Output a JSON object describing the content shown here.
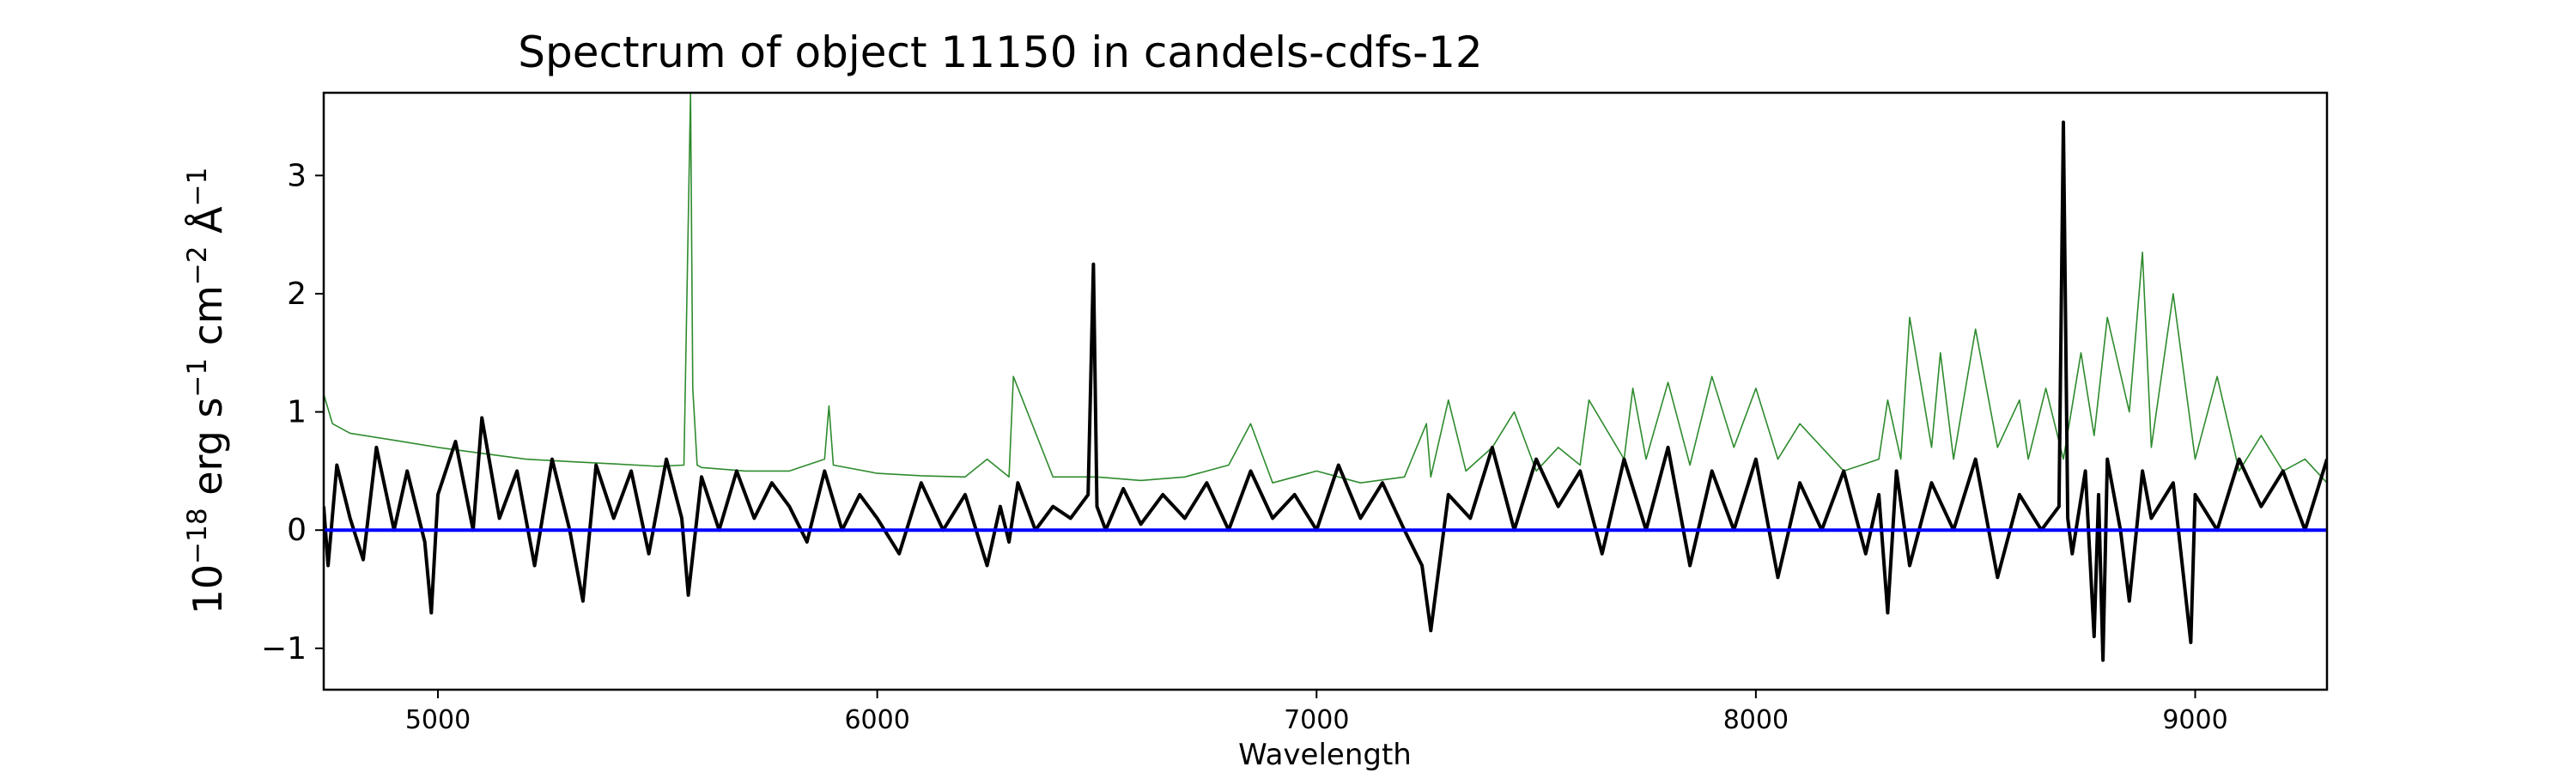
{
  "chart_data": {
    "type": "line",
    "title": "Spectrum of object 11150 in candels-cdfs-12",
    "xlabel": "Wavelength",
    "ylabel": "10",
    "ylabel_exp": "−18",
    "ylabel_units": " erg s",
    "ylabel_s_exp": "−1",
    "ylabel_cm": " cm",
    "ylabel_cm_exp": "−2",
    "ylabel_ang": " Å",
    "ylabel_ang_exp": "−1",
    "xlim": [
      4740,
      9300
    ],
    "ylim": [
      -1.35,
      3.7
    ],
    "xticks": [
      5000,
      6000,
      7000,
      8000,
      9000
    ],
    "xtick_labels": [
      "5000",
      "6000",
      "7000",
      "8000",
      "9000"
    ],
    "yticks": [
      -1,
      0,
      1,
      2,
      3
    ],
    "ytick_labels": [
      "−1",
      "0",
      "1",
      "2",
      "3"
    ],
    "grid": false,
    "series": [
      {
        "role": "model",
        "color": "#2e8b2e",
        "x": [
          4740,
          4760,
          4800,
          4900,
          5000,
          5100,
          5200,
          5300,
          5400,
          5500,
          5560,
          5575,
          5580,
          5590,
          5600,
          5700,
          5800,
          5880,
          5890,
          5900,
          6000,
          6100,
          6200,
          6250,
          6300,
          6310,
          6400,
          6500,
          6600,
          6700,
          6800,
          6850,
          6900,
          7000,
          7100,
          7200,
          7250,
          7260,
          7300,
          7340,
          7400,
          7450,
          7500,
          7550,
          7600,
          7620,
          7700,
          7720,
          7750,
          7800,
          7850,
          7900,
          7950,
          8000,
          8050,
          8100,
          8200,
          8280,
          8300,
          8330,
          8350,
          8400,
          8420,
          8450,
          8500,
          8550,
          8600,
          8620,
          8660,
          8700,
          8740,
          8770,
          8800,
          8850,
          8880,
          8900,
          8950,
          9000,
          9050,
          9100,
          9150,
          9200,
          9250,
          9300
        ],
        "y": [
          1.15,
          0.9,
          0.82,
          0.76,
          0.7,
          0.65,
          0.6,
          0.58,
          0.56,
          0.54,
          0.55,
          3.7,
          1.2,
          0.55,
          0.53,
          0.5,
          0.5,
          0.6,
          1.05,
          0.55,
          0.48,
          0.46,
          0.45,
          0.6,
          0.45,
          1.3,
          0.45,
          0.45,
          0.42,
          0.45,
          0.55,
          0.9,
          0.4,
          0.5,
          0.4,
          0.45,
          0.9,
          0.45,
          1.1,
          0.5,
          0.7,
          1.0,
          0.5,
          0.7,
          0.55,
          1.1,
          0.6,
          1.2,
          0.6,
          1.25,
          0.55,
          1.3,
          0.7,
          1.2,
          0.6,
          0.9,
          0.5,
          0.6,
          1.1,
          0.6,
          1.8,
          0.7,
          1.5,
          0.6,
          1.7,
          0.7,
          1.1,
          0.6,
          1.2,
          0.6,
          1.5,
          0.8,
          1.8,
          1.0,
          2.35,
          0.7,
          2.0,
          0.6,
          1.3,
          0.5,
          0.8,
          0.5,
          0.6,
          0.4
        ]
      },
      {
        "role": "observed",
        "color": "#000000",
        "x": [
          4740,
          4750,
          4770,
          4800,
          4830,
          4860,
          4900,
          4930,
          4970,
          4985,
          5000,
          5040,
          5080,
          5100,
          5140,
          5180,
          5220,
          5260,
          5300,
          5330,
          5360,
          5400,
          5440,
          5480,
          5520,
          5555,
          5570,
          5600,
          5640,
          5680,
          5720,
          5760,
          5800,
          5840,
          5880,
          5920,
          5960,
          6000,
          6050,
          6100,
          6150,
          6200,
          6250,
          6280,
          6300,
          6320,
          6360,
          6400,
          6440,
          6480,
          6492,
          6500,
          6520,
          6560,
          6600,
          6650,
          6700,
          6750,
          6800,
          6850,
          6900,
          6950,
          7000,
          7050,
          7100,
          7150,
          7200,
          7240,
          7260,
          7300,
          7350,
          7400,
          7450,
          7500,
          7550,
          7600,
          7650,
          7700,
          7750,
          7800,
          7850,
          7900,
          7950,
          8000,
          8050,
          8100,
          8150,
          8200,
          8250,
          8280,
          8300,
          8320,
          8350,
          8400,
          8450,
          8500,
          8550,
          8600,
          8650,
          8690,
          8700,
          8710,
          8720,
          8750,
          8770,
          8780,
          8790,
          8800,
          8830,
          8850,
          8880,
          8900,
          8950,
          8990,
          9000,
          9050,
          9100,
          9150,
          9200,
          9250,
          9300
        ],
        "y": [
          0.2,
          -0.3,
          0.55,
          0.1,
          -0.25,
          0.7,
          0.0,
          0.5,
          -0.1,
          -0.7,
          0.3,
          0.75,
          0.0,
          0.95,
          0.1,
          0.5,
          -0.3,
          0.6,
          0.0,
          -0.6,
          0.55,
          0.1,
          0.5,
          -0.2,
          0.6,
          0.1,
          -0.55,
          0.45,
          0.0,
          0.5,
          0.1,
          0.4,
          0.2,
          -0.1,
          0.5,
          0.0,
          0.3,
          0.1,
          -0.2,
          0.4,
          0.0,
          0.3,
          -0.3,
          0.2,
          -0.1,
          0.4,
          0.0,
          0.2,
          0.1,
          0.3,
          2.25,
          0.2,
          0.0,
          0.35,
          0.05,
          0.3,
          0.1,
          0.4,
          0.0,
          0.5,
          0.1,
          0.3,
          0.0,
          0.55,
          0.1,
          0.4,
          0.0,
          -0.3,
          -0.85,
          0.3,
          0.1,
          0.7,
          0.0,
          0.6,
          0.2,
          0.5,
          -0.2,
          0.6,
          0.0,
          0.7,
          -0.3,
          0.5,
          0.0,
          0.6,
          -0.4,
          0.4,
          0.0,
          0.5,
          -0.2,
          0.3,
          -0.7,
          0.5,
          -0.3,
          0.4,
          0.0,
          0.6,
          -0.4,
          0.3,
          0.0,
          0.2,
          3.45,
          0.1,
          -0.2,
          0.5,
          -0.9,
          0.3,
          -1.1,
          0.6,
          0.0,
          -0.6,
          0.5,
          0.1,
          0.4,
          -0.95,
          0.3,
          0.0,
          0.6,
          0.2,
          0.5,
          0.0,
          0.6
        ]
      },
      {
        "role": "zero-line",
        "color": "#0000ff",
        "x": [
          4740,
          9300
        ],
        "y": [
          0,
          0
        ]
      }
    ]
  }
}
